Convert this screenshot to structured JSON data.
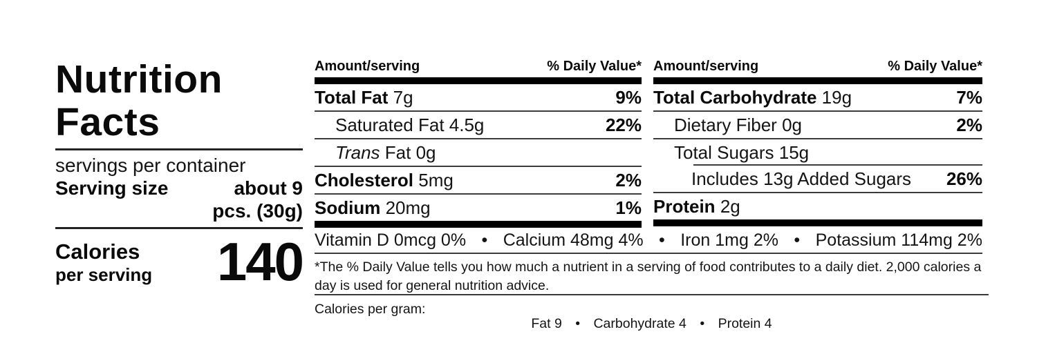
{
  "left_panel": {
    "title_line1": "Nutrition",
    "title_line2": "Facts",
    "servings_text": "servings per container",
    "serving_size_label": "Serving size",
    "serving_size_line1": "about 9",
    "serving_size_line2": "pcs. (30g)",
    "calories_label": "Calories",
    "calories_sublabel": "per serving",
    "calories_value": "140"
  },
  "bullet": "•",
  "columns": [
    {
      "header_amount": "Amount/serving",
      "header_dv": "% Daily Value*",
      "rows": [
        {
          "name": "Total Fat",
          "amount": "7g",
          "dv": "9%"
        },
        {
          "name": "Saturated Fat",
          "amount": "4.5g",
          "dv": "22%"
        },
        {
          "name_italic": "Trans",
          "name": "Fat",
          "amount": "0g",
          "dv": ""
        },
        {
          "name": "Cholesterol",
          "amount": "5mg",
          "dv": "2%"
        },
        {
          "name": "Sodium",
          "amount": "20mg",
          "dv": "1%"
        }
      ]
    },
    {
      "header_amount": "Amount/serving",
      "header_dv": "% Daily Value*",
      "rows": [
        {
          "name": "Total Carbohydrate",
          "amount": "19g",
          "dv": "7%"
        },
        {
          "name": "Dietary Fiber",
          "amount": "0g",
          "dv": "2%"
        },
        {
          "name": "Total Sugars",
          "amount": "15g",
          "dv": ""
        },
        {
          "name": "Includes 13g Added Sugars",
          "amount": "",
          "dv": "26%"
        },
        {
          "name": "Protein",
          "amount": "2g",
          "dv": ""
        }
      ]
    }
  ],
  "micronutrients": [
    "Vitamin D 0mcg 0%",
    "Calcium 48mg 4%",
    "Iron 1mg 2%",
    "Potassium 114mg 2%"
  ],
  "footnote": "*The % Daily Value tells you how much a nutrient in a serving of food contributes to a daily diet. 2,000 calories a day is used for general nutrition advice.",
  "calories_per_gram": {
    "label": "Calories per gram:",
    "items": [
      "Fat 9",
      "Carbohydrate 4",
      "Protein 4"
    ]
  }
}
